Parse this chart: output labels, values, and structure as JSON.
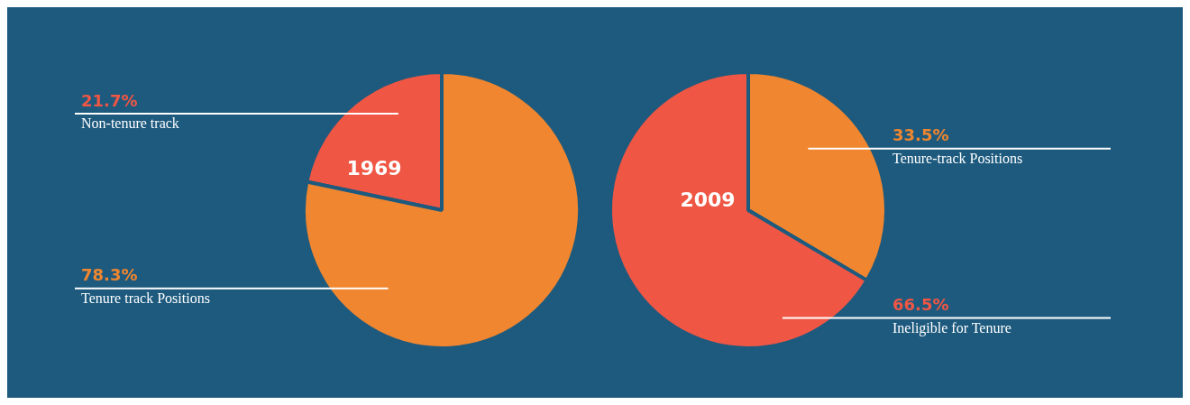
{
  "chart_data": [
    {
      "type": "pie",
      "title": "1969",
      "categories": [
        "Non-tenure track",
        "Tenure track Positions"
      ],
      "values": [
        21.7,
        78.3
      ],
      "colors": [
        "#ef5644",
        "#f0862f"
      ],
      "value_labels": [
        "21.7%",
        "78.3%"
      ],
      "legend": false
    },
    {
      "type": "pie",
      "title": "2009",
      "categories": [
        "Tenure-track Positions",
        "Ineligible for Tenure"
      ],
      "values": [
        33.5,
        66.5
      ],
      "colors": [
        "#f0862f",
        "#ef5644"
      ],
      "value_labels": [
        "33.5%",
        "66.5%"
      ],
      "legend": false
    }
  ]
}
